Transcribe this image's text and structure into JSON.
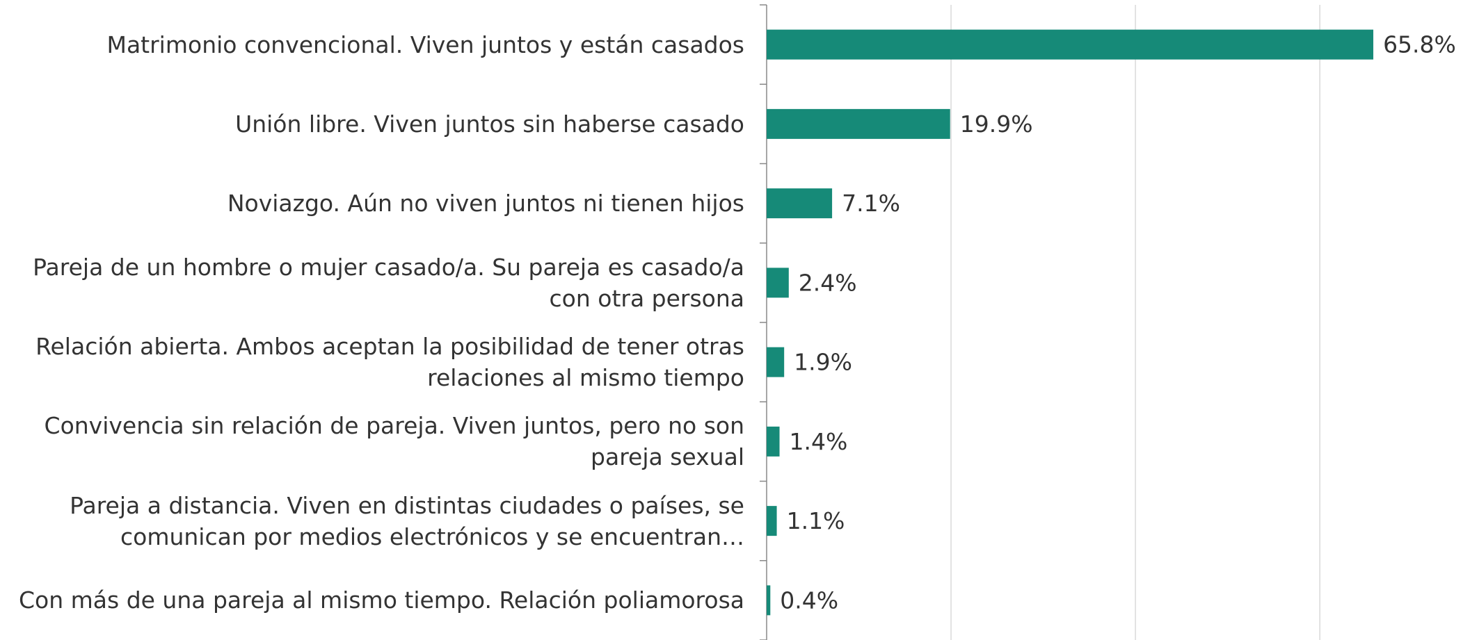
{
  "chart_data": {
    "type": "barh",
    "categories": [
      "Matrimonio convencional. Viven juntos y están casados",
      "Unión libre. Viven juntos sin haberse casado",
      "Noviazgo. Aún no viven juntos ni tienen hijos",
      "Pareja de un hombre o mujer casado/a. Su pareja es casado/a con otra persona",
      "Relación abierta. Ambos aceptan la posibilidad de tener otras relaciones al mismo tiempo",
      "Convivencia sin relación de pareja. Viven juntos, pero no son pareja sexual",
      "Pareja a distancia. Viven en distintas ciudades o países, se comunican por medios electrónicos y se encuentran…",
      "Con más de una pareja al mismo tiempo. Relación poliamorosa"
    ],
    "values": [
      65.8,
      19.9,
      7.1,
      2.4,
      1.9,
      1.4,
      1.1,
      0.4
    ],
    "value_labels": [
      "65.8%",
      "19.9%",
      "7.1%",
      "2.4%",
      "1.9%",
      "1.4%",
      "1.1%",
      "0.4%"
    ],
    "color": "#168a78",
    "xlim": [
      0,
      75
    ],
    "xticks": [
      0,
      20,
      40,
      60
    ],
    "grid": true
  }
}
